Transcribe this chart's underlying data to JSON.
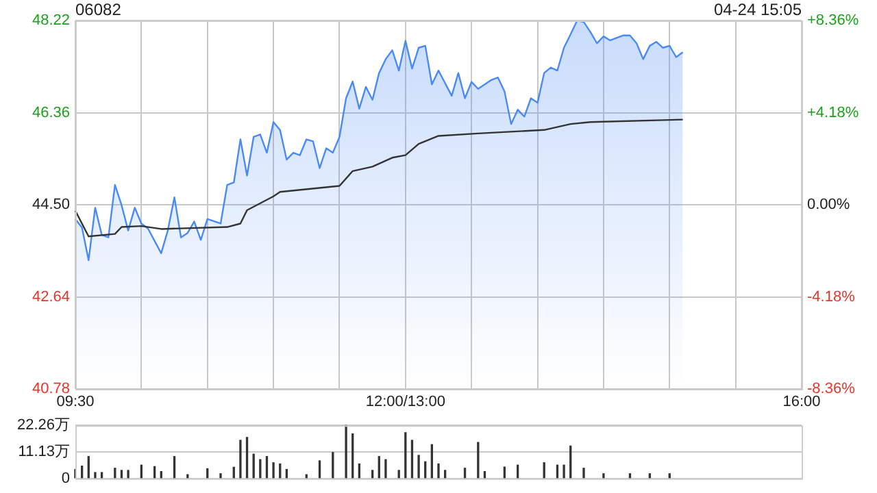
{
  "chart_data": [
    {
      "type": "area",
      "title": "06082",
      "annotations": [
        "04-24 15:05"
      ],
      "categories": [
        "09:30",
        null,
        null,
        null,
        null,
        null,
        null,
        null,
        null,
        null,
        null,
        null,
        null,
        null,
        null,
        null,
        null,
        null,
        null,
        null,
        null,
        null,
        null,
        null,
        null,
        null,
        null,
        null,
        null,
        null,
        null,
        null,
        null,
        null,
        null,
        null,
        null,
        null,
        null,
        null,
        null,
        null,
        null,
        null,
        null,
        null,
        null,
        null,
        null,
        null,
        "12:00/13:00",
        null,
        null,
        null,
        null,
        null,
        null,
        null,
        null,
        null,
        null,
        null,
        null,
        null,
        null,
        null,
        null,
        null,
        null,
        null,
        null,
        null,
        null,
        null,
        null,
        null,
        null,
        null,
        null,
        null,
        null,
        null,
        null,
        null,
        null,
        null,
        null,
        null,
        null,
        null,
        null,
        null,
        null,
        null,
        null,
        null,
        null,
        null,
        null,
        null,
        null,
        null,
        null,
        null,
        null,
        null,
        null,
        null,
        null,
        null,
        "16:00"
      ],
      "ylim": [
        40.78,
        48.22
      ],
      "yticks": [
        40.78,
        42.64,
        {
          "value": 44.5,
          "label": "44.50"
        },
        46.36,
        48.22
      ],
      "y2lim": [
        -8.36,
        8.36
      ],
      "y2ticks": [
        {
          "value": -8.36,
          "label": "-8.36%"
        },
        {
          "value": -4.18,
          "label": "-4.18%"
        },
        {
          "value": 0,
          "label": "0.00%"
        },
        {
          "value": 4.18,
          "label": "+4.18%"
        },
        {
          "value": 8.36,
          "label": "+8.36%"
        }
      ],
      "grid": true,
      "series": [
        {
          "type": "area",
          "color": "#4a8af4",
          "values": [
            44.21,
            44.04,
            43.38,
            44.44,
            43.89,
            43.84,
            44.9,
            44.49,
            43.98,
            44.44,
            44.12,
            44.02,
            null,
            43.52,
            43.98,
            44.65,
            43.84,
            43.93,
            44.16,
            43.79,
            44.21,
            null,
            44.12,
            44.9,
            44.95,
            45.82,
            45.09,
            45.87,
            45.92,
            45.55,
            46.17,
            46.01,
            45.41,
            45.55,
            45.5,
            45.82,
            45.78,
            45.24,
            45.64,
            45.55,
            45.87,
            46.65,
            46.99,
            46.44,
            46.88,
            46.62,
            47.16,
            47.44,
            47.62,
            47.21,
            47.81,
            47.25,
            47.67,
            47.71,
            46.93,
            47.21,
            null,
            46.7,
            47.16,
            46.65,
            46.98,
            46.84,
            null,
            47.02,
            47.07,
            46.79,
            46.13,
            46.42,
            46.28,
            46.65,
            46.56,
            47.16,
            47.27,
            47.21,
            47.67,
            47.94,
            48.22,
            48.19,
            47.99,
            47.76,
            47.9,
            47.82,
            null,
            47.92,
            47.92,
            47.76,
            47.44,
            47.71,
            47.79,
            47.67,
            47.71,
            47.48,
            47.58,
            null,
            null,
            null,
            null,
            null,
            null,
            null,
            null,
            null,
            null,
            null,
            null,
            null,
            null,
            null,
            null,
            null,
            null
          ]
        },
        {
          "type": "line",
          "color": "#333333",
          "values": [
            44.38,
            null,
            43.86,
            null,
            null,
            null,
            43.91,
            44.05,
            null,
            null,
            44.07,
            null,
            null,
            44.01,
            null,
            null,
            null,
            null,
            null,
            null,
            null,
            null,
            null,
            44.05,
            null,
            44.12,
            44.39,
            null,
            null,
            null,
            44.67,
            44.76,
            null,
            null,
            null,
            null,
            null,
            null,
            null,
            null,
            44.88,
            null,
            45.18,
            null,
            null,
            45.27,
            null,
            null,
            45.45,
            null,
            45.5,
            null,
            45.73,
            null,
            null,
            45.89,
            null,
            null,
            null,
            null,
            null,
            45.94,
            null,
            null,
            null,
            null,
            null,
            null,
            null,
            null,
            null,
            46.01,
            null,
            null,
            null,
            46.13,
            null,
            null,
            46.17,
            null,
            null,
            null,
            null,
            null,
            null,
            null,
            null,
            null,
            null,
            null,
            null,
            null,
            46.22,
            null,
            null,
            null,
            null,
            null,
            null,
            null,
            null,
            null,
            null,
            null,
            null,
            null,
            null,
            null,
            null,
            null,
            null
          ]
        }
      ]
    },
    {
      "type": "bar",
      "tick_labels": "y",
      "grid": "y",
      "categories": [
        null,
        null,
        null,
        null,
        null,
        null,
        null,
        null,
        null,
        null,
        null,
        null,
        null,
        null,
        null,
        null,
        null,
        null,
        null,
        null,
        null,
        null,
        null,
        null,
        null,
        null,
        null,
        null,
        null,
        null,
        null,
        null,
        null,
        null,
        null,
        null,
        null,
        null,
        null,
        null,
        null,
        null,
        null,
        null,
        null,
        null,
        null,
        null,
        null,
        null,
        null,
        null,
        null,
        null,
        null,
        null,
        null,
        null,
        null,
        null,
        null,
        null,
        null,
        null,
        null,
        null,
        null,
        null,
        null,
        null,
        null,
        null,
        null,
        null,
        null,
        null,
        null,
        null,
        null,
        null,
        null,
        null,
        null,
        null,
        null,
        null,
        null,
        null,
        null,
        null,
        null,
        null,
        null,
        null,
        null,
        null,
        null,
        null,
        null,
        null,
        null,
        null,
        null,
        null,
        null,
        null,
        null,
        null,
        null,
        null,
        null
      ],
      "ylim": [
        0,
        22.26
      ],
      "yticks": [
        0,
        {
          "value": 11.13,
          "label": "11.13万"
        },
        {
          "value": 22.26,
          "label": "22.26万"
        }
      ],
      "series": [
        {
          "color": "#333333",
          "values": [
            3.8,
            5.2,
            9.2,
            2.5,
            2.5,
            null,
            4.3,
            3.4,
            3.4,
            null,
            5.6,
            null,
            5.0,
            2.9,
            null,
            9.2,
            null,
            1.6,
            null,
            null,
            4.1,
            null,
            2.0,
            null,
            4.7,
            16.0,
            17.2,
            10.2,
            7.9,
            9.2,
            6.6,
            6.1,
            3.8,
            null,
            null,
            1.6,
            null,
            7.4,
            null,
            10.9,
            null,
            22.2,
            18.7,
            6.1,
            null,
            3.4,
            9.2,
            7.9,
            null,
            3.4,
            19.2,
            16.0,
            9.7,
            7.0,
            14.2,
            6.1,
            3.4,
            null,
            null,
            4.3,
            null,
            15.1,
            2.9,
            null,
            null,
            4.8,
            null,
            5.6,
            null,
            null,
            null,
            6.6,
            null,
            5.6,
            5.6,
            13.6,
            null,
            4.3,
            null,
            null,
            2.0,
            null,
            null,
            null,
            2.0,
            null,
            null,
            2.0,
            null,
            null,
            2.0,
            null,
            null,
            null,
            null,
            null,
            null,
            null,
            null,
            null,
            null,
            null,
            null,
            null,
            null,
            null,
            null,
            null,
            null,
            null,
            null
          ]
        }
      ]
    }
  ]
}
